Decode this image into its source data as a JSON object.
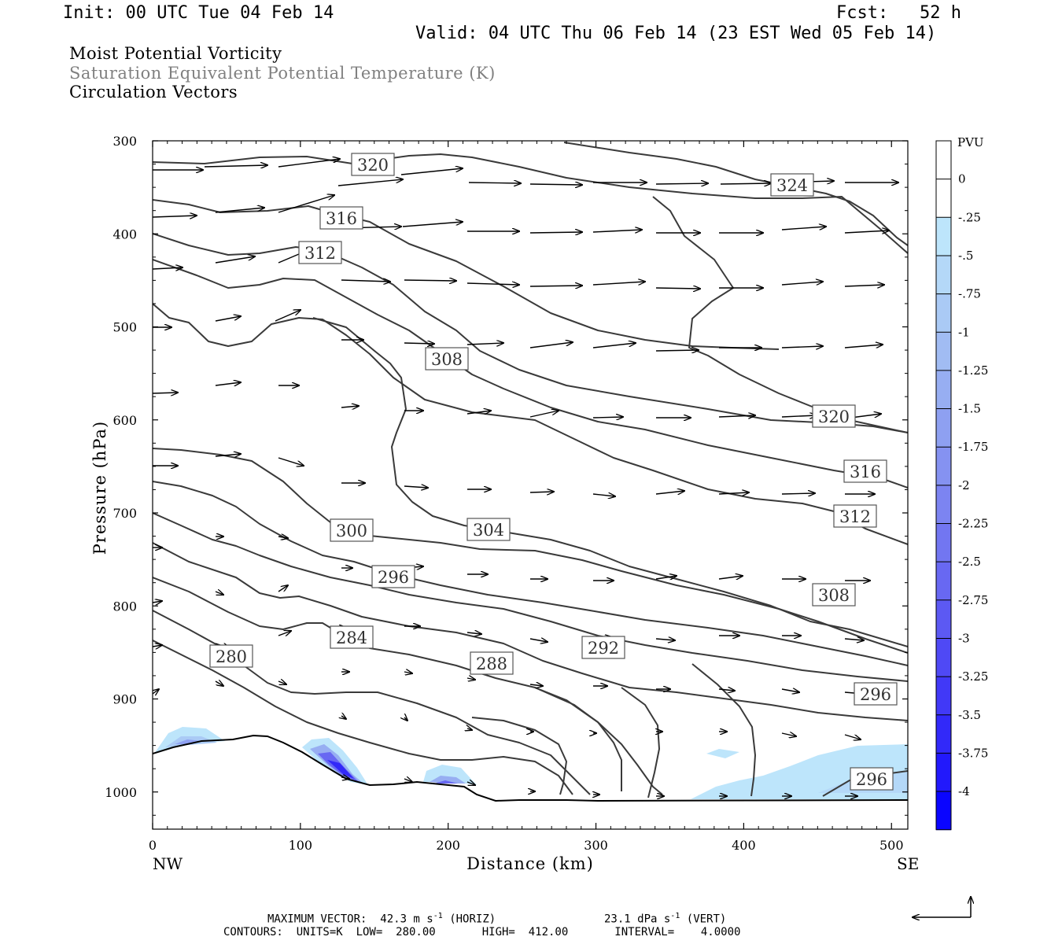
{
  "header": {
    "init": "Init: 00 UTC Tue 04 Feb 14",
    "fcst": "Fcst:   52 h",
    "valid": "Valid: 04 UTC Thu 06 Feb 14 (23 EST Wed 05 Feb 14)"
  },
  "titles": {
    "line1": "Moist Potential Vorticity",
    "line2": "Saturation Equivalent Potential Temperature (K)",
    "line3": "Circulation Vectors",
    "line2_color": "#808080"
  },
  "chart_data": {
    "type": "cross-section",
    "xlabel": "Distance (km)",
    "ylabel": "Pressure (hPa)",
    "x_ticks": [
      "0",
      "100",
      "200",
      "300",
      "400",
      "500"
    ],
    "y_ticks": [
      "300",
      "400",
      "500",
      "600",
      "700",
      "800",
      "900",
      "1000"
    ],
    "xlim": [
      0,
      510
    ],
    "ylim": [
      300,
      1040
    ],
    "y_inverted": true,
    "left_endpoint": "NW",
    "right_endpoint": "SE",
    "colorbar": {
      "unit": "PVU",
      "labels": [
        "0",
        "-.25",
        "-.5",
        "-.75",
        "-1",
        "-1.25",
        "-1.5",
        "-1.75",
        "-2",
        "-2.25",
        "-2.5",
        "-2.75",
        "-3",
        "-3.25",
        "-3.5",
        "-3.75",
        "-4"
      ],
      "colors": [
        "#ffffff",
        "#ffffff",
        "#bde5fb",
        "#b4d8f8",
        "#aacaf5",
        "#a1bcf3",
        "#97aef2",
        "#8ea0f1",
        "#8592f1",
        "#7c84f1",
        "#7276f1",
        "#6868f2",
        "#5c59f3",
        "#4f49f5",
        "#4139f7",
        "#3229f9",
        "#2219fc",
        "#0a05ff"
      ]
    },
    "contour_labels": [
      "320",
      "316",
      "312",
      "308",
      "324",
      "320",
      "316",
      "312",
      "308",
      "304",
      "300",
      "296",
      "284",
      "280",
      "288",
      "292",
      "296",
      "296"
    ],
    "contour_color": "#3a3a3a"
  },
  "footer": {
    "max_vector": "MAXIMUM VECTOR:  42.3 m s",
    "max_vector_exp": "-1",
    "max_vector_horiz": " (HORIZ)",
    "vert_value": "23.1 dPa s",
    "vert_exp": "-1",
    "vert_label": " (VERT)",
    "contours": "CONTOURS:  UNITS=K  LOW=  280.00       HIGH=  412.00       INTERVAL=    4.0000"
  }
}
